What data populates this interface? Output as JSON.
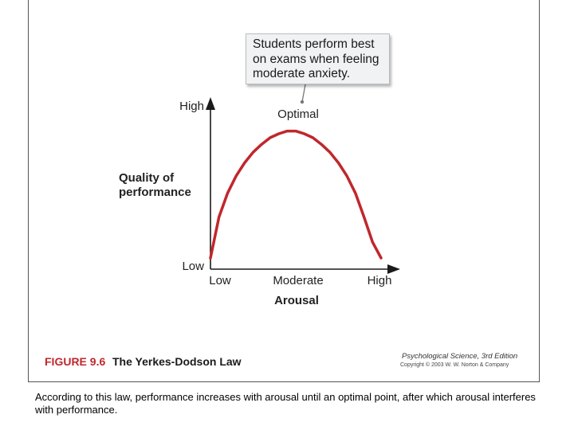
{
  "callout": {
    "lines": [
      "Students perform best",
      "on exams when feeling",
      "moderate anxiety."
    ]
  },
  "chart_data": {
    "type": "line",
    "title": "",
    "xlabel": "Arousal",
    "ylabel": "Quality of performance",
    "ylabel_lines": [
      "Quality of",
      "performance"
    ],
    "x_ticks": [
      "Low",
      "Moderate",
      "High"
    ],
    "y_ticks": [
      "Low",
      "High"
    ],
    "xlim": [
      0,
      1
    ],
    "ylim": [
      0,
      1
    ],
    "series": [
      {
        "x": [
          0.0,
          0.05,
          0.1,
          0.15,
          0.2,
          0.25,
          0.3,
          0.35,
          0.4,
          0.45,
          0.5,
          0.55,
          0.6,
          0.65,
          0.7,
          0.75,
          0.8,
          0.85,
          0.9,
          0.95,
          1.0
        ],
        "y": [
          0.0,
          0.31,
          0.49,
          0.62,
          0.72,
          0.8,
          0.86,
          0.91,
          0.94,
          0.96,
          0.96,
          0.94,
          0.91,
          0.86,
          0.8,
          0.72,
          0.62,
          0.49,
          0.31,
          0.12,
          0.0
        ],
        "color": "#c0272d"
      }
    ],
    "annotations": [
      {
        "text": "Optimal",
        "x": 0.5,
        "y": 0.96
      }
    ],
    "grid": false
  },
  "figure": {
    "number": "FIGURE 9.6",
    "title": "The Yerkes-Dodson Law"
  },
  "credit": {
    "line1": "Psychological Science, 3rd Edition",
    "line2": "Copyright © 2003 W. W. Norton & Company"
  },
  "caption": "According to this law, performance increases with arousal until an optimal point, after which arousal interferes with performance."
}
